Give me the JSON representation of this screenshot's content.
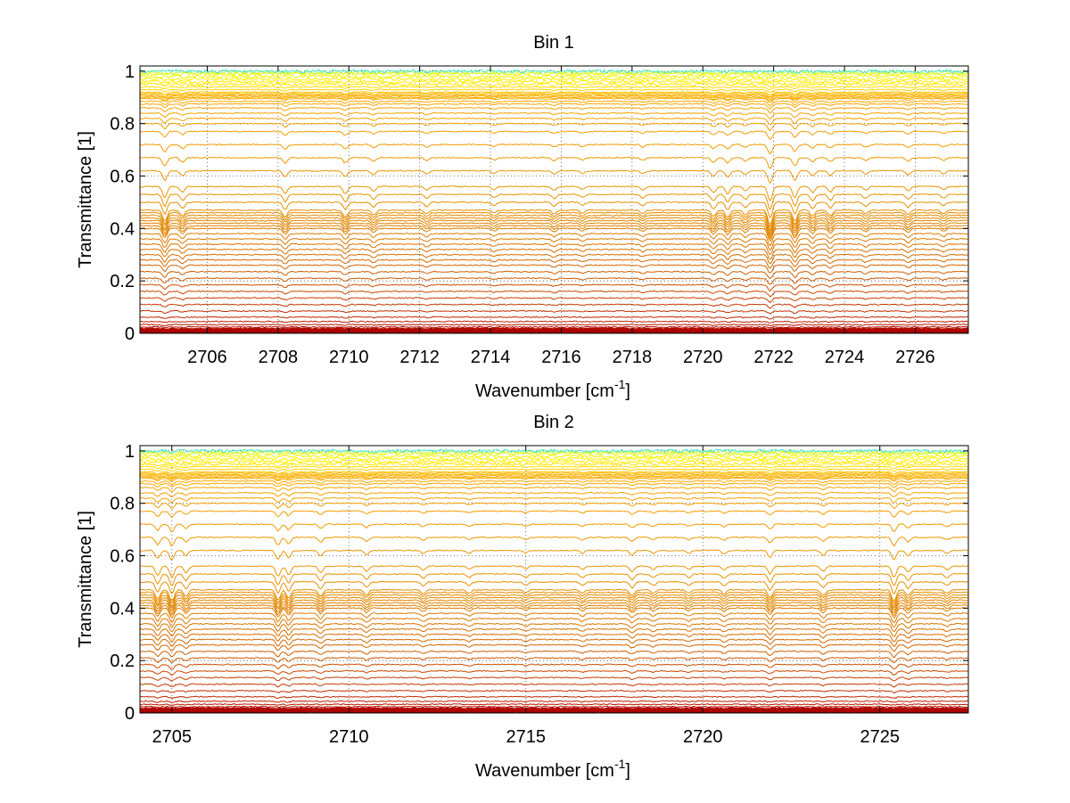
{
  "chart_data": [
    {
      "type": "line",
      "title": "Bin 1",
      "xlabel": "Wavenumber [cm",
      "xlabel_sup": "-1",
      "xlabel_end": "]",
      "ylabel": "Transmittance [1]",
      "xlim": [
        2704.1,
        2727.5
      ],
      "ylim": [
        0,
        1.02
      ],
      "xticks": [
        2706,
        2708,
        2710,
        2712,
        2714,
        2716,
        2718,
        2720,
        2722,
        2724,
        2726
      ],
      "xtick_labels": [
        "2706",
        "2708",
        "2710",
        "2712",
        "2714",
        "2716",
        "2718",
        "2720",
        "2722",
        "2724",
        "2726"
      ],
      "yticks": [
        0,
        0.2,
        0.4,
        0.6,
        0.8,
        1
      ],
      "ytick_labels": [
        "0",
        "0.2",
        "0.4",
        "0.6",
        "0.8",
        "1"
      ],
      "grid": true,
      "legend": "none",
      "series_levels": [
        0.004,
        0.008,
        0.012,
        0.017,
        0.024,
        0.033,
        0.045,
        0.062,
        0.085,
        0.11,
        0.135,
        0.16,
        0.185,
        0.21,
        0.235,
        0.26,
        0.28,
        0.3,
        0.32,
        0.34,
        0.36,
        0.38,
        0.4,
        0.41,
        0.42,
        0.43,
        0.44,
        0.45,
        0.46,
        0.47,
        0.5,
        0.53,
        0.56,
        0.62,
        0.67,
        0.72,
        0.77,
        0.8,
        0.82,
        0.84,
        0.86,
        0.875,
        0.885,
        0.895,
        0.9,
        0.905,
        0.91,
        0.915,
        0.92,
        0.93,
        0.94,
        0.95,
        0.96,
        0.97,
        0.98,
        0.99,
        0.995,
        1.0
      ],
      "series_colors": [
        "#a00000",
        "#a80000",
        "#b00000",
        "#b00800",
        "#b41000",
        "#b81800",
        "#bc2000",
        "#c02800",
        "#c43000",
        "#c43800",
        "#c84000",
        "#cc4800",
        "#cc5000",
        "#d05800",
        "#d06000",
        "#d46400",
        "#d46800",
        "#d86c00",
        "#d87000",
        "#dc7400",
        "#dc7800",
        "#e07c00",
        "#e08000",
        "#e08200",
        "#e28400",
        "#e28600",
        "#e48800",
        "#e48a00",
        "#e68c00",
        "#e68e00",
        "#e89000",
        "#ea9200",
        "#ec9400",
        "#ee9600",
        "#f09800",
        "#f29a00",
        "#f49c00",
        "#f69e00",
        "#f8a000",
        "#f9a200",
        "#faa400",
        "#fba600",
        "#fca800",
        "#fdaa00",
        "#fdac00",
        "#feae00",
        "#feb000",
        "#ffb800",
        "#ffc400",
        "#ffd000",
        "#ffdc00",
        "#ffe400",
        "#ffec00",
        "#fff200",
        "#f4f400",
        "#e8f800",
        "#ccf838",
        "#40e8d8"
      ],
      "dips": [
        [
          2704.8,
          2.6
        ],
        [
          2705.3,
          1.4
        ],
        [
          2708.2,
          1.6
        ],
        [
          2709.9,
          1.6
        ],
        [
          2710.7,
          1.1
        ],
        [
          2712.2,
          0.9
        ],
        [
          2714.1,
          0.7
        ],
        [
          2715.8,
          0.9
        ],
        [
          2716.6,
          0.7
        ],
        [
          2718.3,
          0.8
        ],
        [
          2720.3,
          1.5
        ],
        [
          2720.7,
          1.7
        ],
        [
          2721.2,
          1.1
        ],
        [
          2721.9,
          3.4
        ],
        [
          2722.6,
          2.6
        ],
        [
          2723.1,
          1.4
        ],
        [
          2723.6,
          1.3
        ],
        [
          2724.6,
          0.9
        ],
        [
          2725.8,
          1.1
        ],
        [
          2726.8,
          0.8
        ]
      ]
    },
    {
      "type": "line",
      "title": "Bin 2",
      "xlabel": "Wavenumber [cm",
      "xlabel_sup": "-1",
      "xlabel_end": "]",
      "ylabel": "Transmittance [1]",
      "xlim": [
        2704.1,
        2727.5
      ],
      "ylim": [
        0,
        1.02
      ],
      "xticks": [
        2705,
        2710,
        2715,
        2720,
        2725
      ],
      "xtick_labels": [
        "2705",
        "2710",
        "2715",
        "2720",
        "2725"
      ],
      "yticks": [
        0,
        0.2,
        0.4,
        0.6,
        0.8,
        1
      ],
      "ytick_labels": [
        "0",
        "0.2",
        "0.4",
        "0.6",
        "0.8",
        "1"
      ],
      "grid": true,
      "legend": "none",
      "series_levels": [
        0.004,
        0.008,
        0.012,
        0.017,
        0.024,
        0.033,
        0.045,
        0.062,
        0.085,
        0.11,
        0.135,
        0.16,
        0.185,
        0.21,
        0.235,
        0.26,
        0.28,
        0.3,
        0.32,
        0.34,
        0.36,
        0.38,
        0.4,
        0.41,
        0.42,
        0.43,
        0.44,
        0.45,
        0.46,
        0.47,
        0.5,
        0.53,
        0.56,
        0.62,
        0.67,
        0.72,
        0.77,
        0.8,
        0.82,
        0.84,
        0.86,
        0.875,
        0.885,
        0.895,
        0.9,
        0.905,
        0.91,
        0.915,
        0.92,
        0.93,
        0.94,
        0.95,
        0.96,
        0.97,
        0.98,
        0.99,
        0.995,
        1.0
      ],
      "series_colors": [
        "#a00000",
        "#a80000",
        "#b00000",
        "#b00800",
        "#b41000",
        "#b81800",
        "#bc2000",
        "#c02800",
        "#c43000",
        "#c43800",
        "#c84000",
        "#cc4800",
        "#cc5000",
        "#d05800",
        "#d06000",
        "#d46400",
        "#d46800",
        "#d86c00",
        "#d87000",
        "#dc7400",
        "#dc7800",
        "#e07c00",
        "#e08000",
        "#e08200",
        "#e28400",
        "#e28600",
        "#e48800",
        "#e48a00",
        "#e68c00",
        "#e68e00",
        "#e89000",
        "#ea9200",
        "#ec9400",
        "#ee9600",
        "#f09800",
        "#f29a00",
        "#f49c00",
        "#f69e00",
        "#f8a000",
        "#f9a200",
        "#faa400",
        "#fba600",
        "#fca800",
        "#fdaa00",
        "#fdac00",
        "#feae00",
        "#feb000",
        "#ffb800",
        "#ffc400",
        "#ffd000",
        "#ffdc00",
        "#ffe400",
        "#ffec00",
        "#fff200",
        "#f4f400",
        "#e8f800",
        "#ccf838",
        "#40e8d8"
      ],
      "dips": [
        [
          2704.6,
          2.2
        ],
        [
          2705.0,
          2.6
        ],
        [
          2705.4,
          1.5
        ],
        [
          2708.0,
          2.4
        ],
        [
          2708.3,
          2.0
        ],
        [
          2709.2,
          1.5
        ],
        [
          2710.5,
          1.2
        ],
        [
          2712.1,
          0.9
        ],
        [
          2713.4,
          0.8
        ],
        [
          2715.0,
          0.7
        ],
        [
          2716.6,
          0.8
        ],
        [
          2718.0,
          1.3
        ],
        [
          2718.6,
          0.8
        ],
        [
          2719.6,
          0.8
        ],
        [
          2720.6,
          0.9
        ],
        [
          2721.9,
          1.8
        ],
        [
          2723.4,
          1.3
        ],
        [
          2725.4,
          2.6
        ],
        [
          2725.8,
          1.4
        ],
        [
          2726.9,
          0.8
        ]
      ]
    }
  ]
}
